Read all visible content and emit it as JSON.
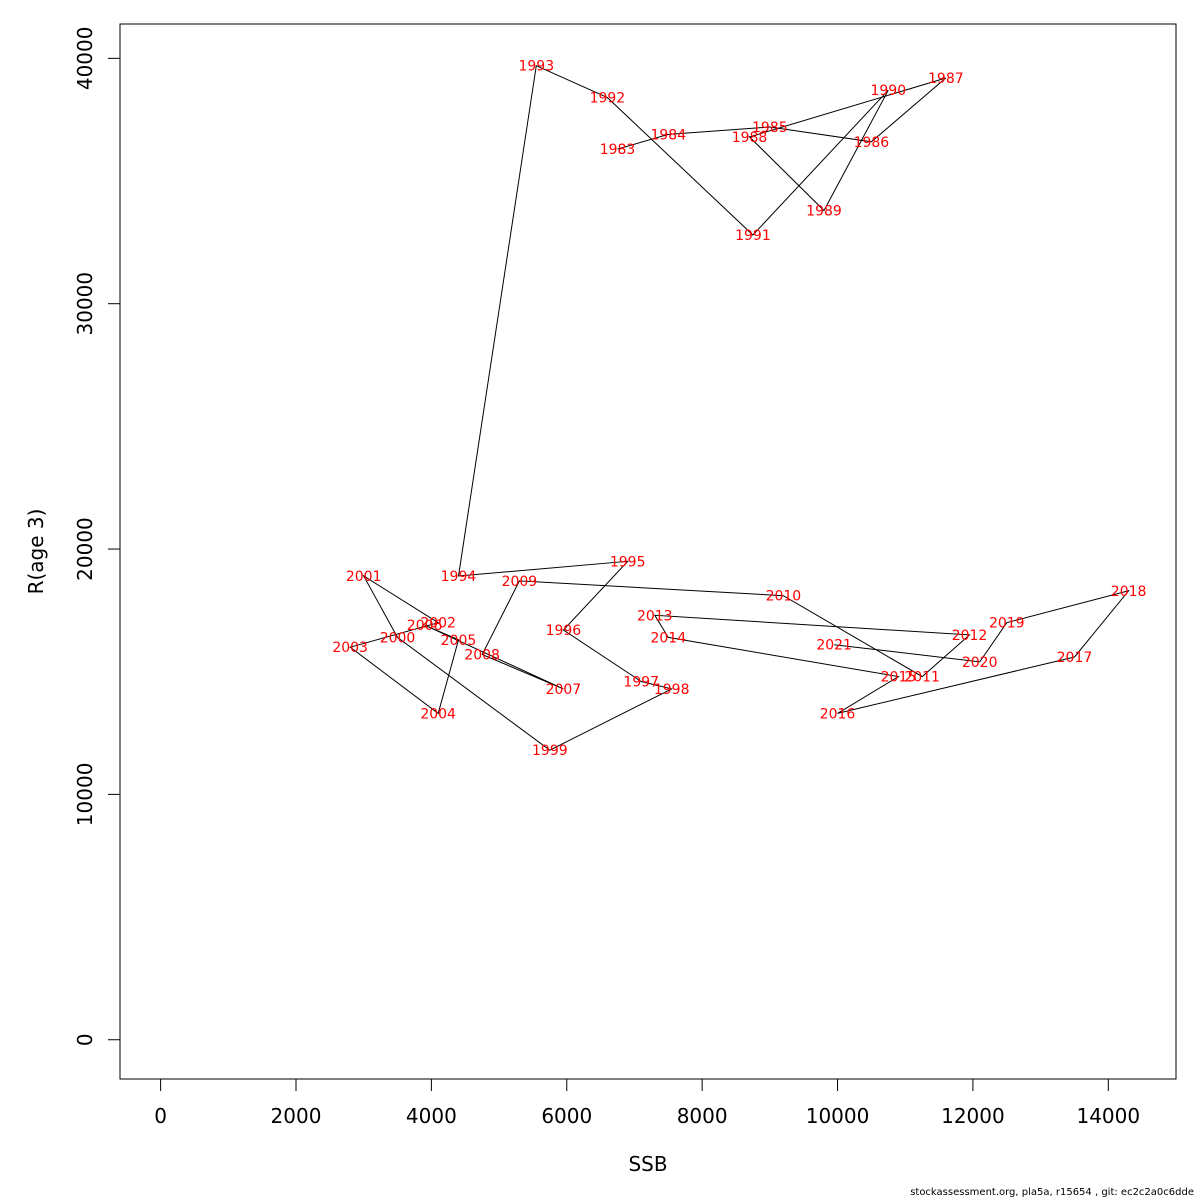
{
  "chart_data": {
    "type": "line",
    "xlabel": "SSB",
    "ylabel": "R(age 3)",
    "xlim": [
      -600,
      15000
    ],
    "ylim": [
      -1600,
      41400
    ],
    "xticks": [
      0,
      2000,
      4000,
      6000,
      8000,
      10000,
      12000,
      14000
    ],
    "yticks": [
      0,
      10000,
      20000,
      30000,
      40000
    ],
    "xtick_labels": [
      "0",
      "2000",
      "4000",
      "6000",
      "8000",
      "10000",
      "12000",
      "14000"
    ],
    "ytick_labels": [
      "0",
      "10000",
      "20000",
      "30000",
      "40000"
    ],
    "label_color": "#ff0000",
    "line_color": "#000000",
    "points": [
      {
        "year": "1983",
        "x": 6750,
        "y": 36300
      },
      {
        "year": "1984",
        "x": 7500,
        "y": 36900
      },
      {
        "year": "1985",
        "x": 9000,
        "y": 37200
      },
      {
        "year": "1986",
        "x": 10500,
        "y": 36600
      },
      {
        "year": "1987",
        "x": 11600,
        "y": 39200
      },
      {
        "year": "1988",
        "x": 8700,
        "y": 36800
      },
      {
        "year": "1989",
        "x": 9800,
        "y": 33800
      },
      {
        "year": "1990",
        "x": 10750,
        "y": 38700
      },
      {
        "year": "1991",
        "x": 8750,
        "y": 32800
      },
      {
        "year": "1992",
        "x": 6600,
        "y": 38400
      },
      {
        "year": "1993",
        "x": 5550,
        "y": 39700
      },
      {
        "year": "1994",
        "x": 4400,
        "y": 18900
      },
      {
        "year": "1995",
        "x": 6900,
        "y": 19500
      },
      {
        "year": "1996",
        "x": 5950,
        "y": 16700
      },
      {
        "year": "1997",
        "x": 7100,
        "y": 14600
      },
      {
        "year": "1998",
        "x": 7550,
        "y": 14300
      },
      {
        "year": "1999",
        "x": 5750,
        "y": 11800
      },
      {
        "year": "2000",
        "x": 3500,
        "y": 16400
      },
      {
        "year": "2001",
        "x": 3000,
        "y": 18900
      },
      {
        "year": "2002",
        "x": 4100,
        "y": 17000
      },
      {
        "year": "2003",
        "x": 2800,
        "y": 16000
      },
      {
        "year": "2004",
        "x": 4100,
        "y": 13300
      },
      {
        "year": "2005",
        "x": 4400,
        "y": 16300
      },
      {
        "year": "2006",
        "x": 3900,
        "y": 16900
      },
      {
        "year": "2007",
        "x": 5950,
        "y": 14300
      },
      {
        "year": "2008",
        "x": 4750,
        "y": 15700
      },
      {
        "year": "2009",
        "x": 5300,
        "y": 18700
      },
      {
        "year": "2010",
        "x": 9200,
        "y": 18100
      },
      {
        "year": "2011",
        "x": 11250,
        "y": 14800
      },
      {
        "year": "2012",
        "x": 11950,
        "y": 16500
      },
      {
        "year": "2013",
        "x": 7300,
        "y": 17300
      },
      {
        "year": "2014",
        "x": 7500,
        "y": 16400
      },
      {
        "year": "2015",
        "x": 10900,
        "y": 14800
      },
      {
        "year": "2016",
        "x": 10000,
        "y": 13300
      },
      {
        "year": "2017",
        "x": 13500,
        "y": 15600
      },
      {
        "year": "2018",
        "x": 14300,
        "y": 18300
      },
      {
        "year": "2019",
        "x": 12500,
        "y": 17000
      },
      {
        "year": "2020",
        "x": 12100,
        "y": 15400
      },
      {
        "year": "2021",
        "x": 9950,
        "y": 16100
      }
    ]
  },
  "footer": "stockassessment.org, pla5a, r15654 , git: ec2c2a0c6dde"
}
